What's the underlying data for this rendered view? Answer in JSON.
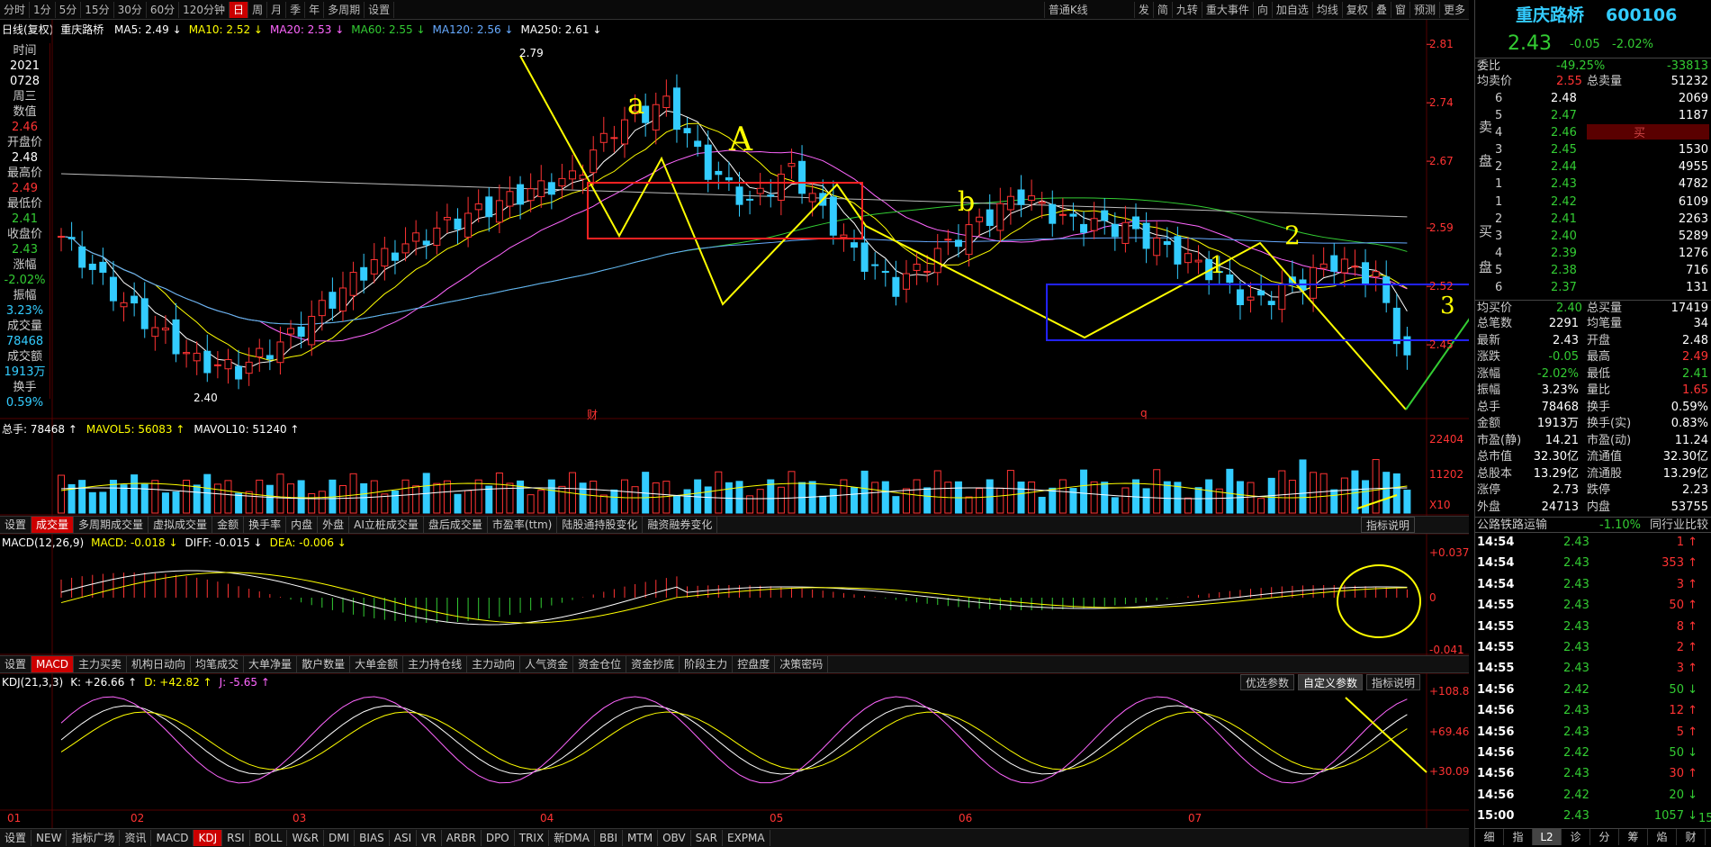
{
  "toolbar": {
    "items": [
      "分时",
      "1分",
      "5分",
      "15分",
      "30分",
      "60分",
      "120分钟",
      "日",
      "周",
      "月",
      "季",
      "年",
      "多周期",
      "设置"
    ],
    "active": "日",
    "kline_type": "普通K线",
    "right_items": [
      "发",
      "简",
      "九转",
      "重大事件",
      "向",
      "加自选",
      "均线",
      "复权",
      "叠",
      "窗",
      "预测",
      "更多"
    ]
  },
  "chart_header": {
    "label": "日线(复权)",
    "stock": "重庆路桥",
    "ma": [
      {
        "t": "MA5: 2.49",
        "c": "#ffffff"
      },
      {
        "t": "MA10: 2.52",
        "c": "#ffff00"
      },
      {
        "t": "MA20: 2.53",
        "c": "#ff66ff"
      },
      {
        "t": "MA60: 2.55",
        "c": "#33cc33"
      },
      {
        "t": "MA120: 2.56",
        "c": "#66aaff"
      },
      {
        "t": "MA250: 2.61",
        "c": "#ffffff"
      }
    ]
  },
  "left_panel": [
    [
      "时间",
      "lb"
    ],
    [
      "2021",
      "vw"
    ],
    [
      "0728",
      "vw"
    ],
    [
      "周三",
      "lb"
    ],
    [
      "数值",
      "lb"
    ],
    [
      "2.46",
      "vr"
    ],
    [
      "开盘价",
      "lb"
    ],
    [
      "2.48",
      "vw"
    ],
    [
      "最高价",
      "lb"
    ],
    [
      "2.49",
      "vr"
    ],
    [
      "最低价",
      "lb"
    ],
    [
      "2.41",
      "vg"
    ],
    [
      "收盘价",
      "lb"
    ],
    [
      "2.43",
      "vg"
    ],
    [
      "涨幅",
      "lb"
    ],
    [
      "-2.02%",
      "vg"
    ],
    [
      "振幅",
      "lb"
    ],
    [
      "3.23%",
      "vc"
    ],
    [
      "成交量",
      "lb"
    ],
    [
      "78468",
      "vc"
    ],
    [
      "成交额",
      "lb"
    ],
    [
      "1913万",
      "vc"
    ],
    [
      "换手",
      "lb"
    ],
    [
      "0.59%",
      "vc"
    ]
  ],
  "price_axis": [
    "2.81",
    "2.74",
    "2.67",
    "2.59",
    "2.52",
    "2.45"
  ],
  "price_labels": {
    "high": "2.79",
    "low": "2.40"
  },
  "annotations": [
    "a",
    "A",
    "b",
    "1",
    "2",
    "3",
    "c"
  ],
  "markers": {
    "cai": "财",
    "q": "q"
  },
  "volume": {
    "header": [
      {
        "t": "总手: 78468",
        "c": "#ffffff"
      },
      {
        "t": "MAVOL5: 56083",
        "c": "#ffff00"
      },
      {
        "t": "MAVOL10: 51240",
        "c": "#ffffff"
      }
    ],
    "axis": [
      "22404",
      "11202",
      "X10"
    ]
  },
  "vol_tabs": {
    "items": [
      "设置",
      "成交量",
      "多周期成交量",
      "虚拟成交量",
      "金额",
      "换手率",
      "内盘",
      "外盘",
      "AI立桩成交量",
      "盘后成交量",
      "市盈率(ttm)",
      "陆股通持股变化",
      "融资融券变化"
    ],
    "active": "成交量",
    "explain": "指标说明"
  },
  "macd": {
    "header": [
      {
        "t": "MACD(12,26,9)",
        "c": "#ffffff"
      },
      {
        "t": "MACD: -0.018",
        "c": "#ffff00"
      },
      {
        "t": "DIFF: -0.015",
        "c": "#ffffff"
      },
      {
        "t": "DEA: -0.006",
        "c": "#ffff00"
      }
    ],
    "axis": [
      "+0.037",
      "0",
      "-0.041"
    ]
  },
  "macd_tabs": {
    "items": [
      "设置",
      "MACD",
      "主力买卖",
      "机构日动向",
      "均笔成交",
      "大单净量",
      "散户数量",
      "大单金额",
      "主力持仓线",
      "主力动向",
      "人气资金",
      "资金仓位",
      "资金抄底",
      "阶段主力",
      "控盘度",
      "决策密码"
    ],
    "active": "MACD"
  },
  "kdj": {
    "header": [
      {
        "t": "KDJ(21,3,3)",
        "c": "#ffffff"
      },
      {
        "t": "K: +26.66",
        "c": "#ffffff"
      },
      {
        "t": "D: +42.82",
        "c": "#ffff00"
      },
      {
        "t": "J: -5.65",
        "c": "#ff66ff"
      }
    ],
    "buttons": [
      "优选参数",
      "自定义参数",
      "指标说明"
    ],
    "axis": [
      "+108.8",
      "+69.46",
      "+30.09"
    ]
  },
  "months": [
    "01",
    "02",
    "03",
    "04",
    "05",
    "06",
    "07"
  ],
  "bottom_tabs": {
    "items": [
      "设置",
      "NEW",
      "指标广场",
      "资讯",
      "MACD",
      "KDJ",
      "RSI",
      "BOLL",
      "W&R",
      "DMI",
      "BIAS",
      "ASI",
      "VR",
      "ARBR",
      "DPO",
      "TRIX",
      "新DMA",
      "BBI",
      "MTM",
      "OBV",
      "SAR",
      "EXPMA"
    ],
    "active": "KDJ"
  },
  "quote": {
    "name": "重庆路桥",
    "code": "600106",
    "price": "2.43",
    "change": "-0.05",
    "pct": "-2.02%",
    "weibi": {
      "label": "委比",
      "pct": "-49.25%",
      "val": "-33813"
    },
    "avg_sell": {
      "label": "均卖价",
      "val": "2.55",
      "label2": "总卖量",
      "val2": "51232"
    },
    "sells": [
      [
        "6",
        "2.48",
        "2069"
      ],
      [
        "5",
        "2.47",
        "1187"
      ],
      [
        "4",
        "2.46",
        "1694"
      ],
      [
        "3",
        "2.45",
        "1530"
      ],
      [
        "2",
        "2.44",
        "4955"
      ],
      [
        "1",
        "2.43",
        "4782"
      ]
    ],
    "sell_side": [
      "卖",
      "盘"
    ],
    "buy_side": [
      "买",
      "盘"
    ],
    "mai_label": "买",
    "buys": [
      [
        "1",
        "2.42",
        "6109"
      ],
      [
        "2",
        "2.41",
        "2263"
      ],
      [
        "3",
        "2.40",
        "5289"
      ],
      [
        "4",
        "2.39",
        "1276"
      ],
      [
        "5",
        "2.38",
        "716"
      ],
      [
        "6",
        "2.37",
        "131"
      ]
    ],
    "avg_buy": {
      "label": "均买价",
      "val": "2.40",
      "label2": "总买量",
      "val2": "17419"
    },
    "stats": [
      [
        "总笔数",
        "2291",
        "均笔量",
        "34"
      ],
      [
        "最新",
        "2.43",
        "开盘",
        "2.48"
      ],
      [
        "涨跌",
        "-0.05",
        "最高",
        "2.49"
      ],
      [
        "涨幅",
        "-2.02%",
        "最低",
        "2.41"
      ],
      [
        "振幅",
        "3.23%",
        "量比",
        "1.65"
      ],
      [
        "总手",
        "78468",
        "换手",
        "0.59%"
      ],
      [
        "金额",
        "1913万",
        "换手(实)",
        "0.83%"
      ],
      [
        "市盈(静)",
        "14.21",
        "市盈(动)",
        "11.24"
      ],
      [
        "总市值",
        "32.30亿",
        "流通值",
        "32.30亿"
      ],
      [
        "总股本",
        "13.29亿",
        "流通股",
        "13.29亿"
      ],
      [
        "涨停",
        "2.73",
        "跌停",
        "2.23"
      ],
      [
        "外盘",
        "24713",
        "内盘",
        "53755"
      ]
    ],
    "industry": {
      "name": "公路铁路运输",
      "pct": "-1.10%",
      "compare": "同行业比较"
    },
    "ticks": [
      [
        "14:54",
        "2.43",
        "1",
        "up"
      ],
      [
        "14:54",
        "2.43",
        "353",
        "up"
      ],
      [
        "14:54",
        "2.43",
        "3",
        "up"
      ],
      [
        "14:55",
        "2.43",
        "50",
        "up"
      ],
      [
        "14:55",
        "2.43",
        "8",
        "up"
      ],
      [
        "14:55",
        "2.43",
        "2",
        "up"
      ],
      [
        "14:55",
        "2.43",
        "3",
        "up"
      ],
      [
        "14:56",
        "2.42",
        "50",
        "dn"
      ],
      [
        "14:56",
        "2.43",
        "12",
        "up"
      ],
      [
        "14:56",
        "2.43",
        "5",
        "up"
      ],
      [
        "14:56",
        "2.42",
        "50",
        "dn"
      ],
      [
        "14:56",
        "2.43",
        "30",
        "up"
      ],
      [
        "14:56",
        "2.42",
        "20",
        "dn"
      ],
      [
        "15:00",
        "2.43",
        "1057",
        "dn"
      ]
    ],
    "tick_last_extra": "15",
    "bottom_tabs": [
      "细",
      "指",
      "L2",
      "诊",
      "分",
      "筹",
      "焰",
      "财"
    ],
    "bottom_active": "L2"
  }
}
